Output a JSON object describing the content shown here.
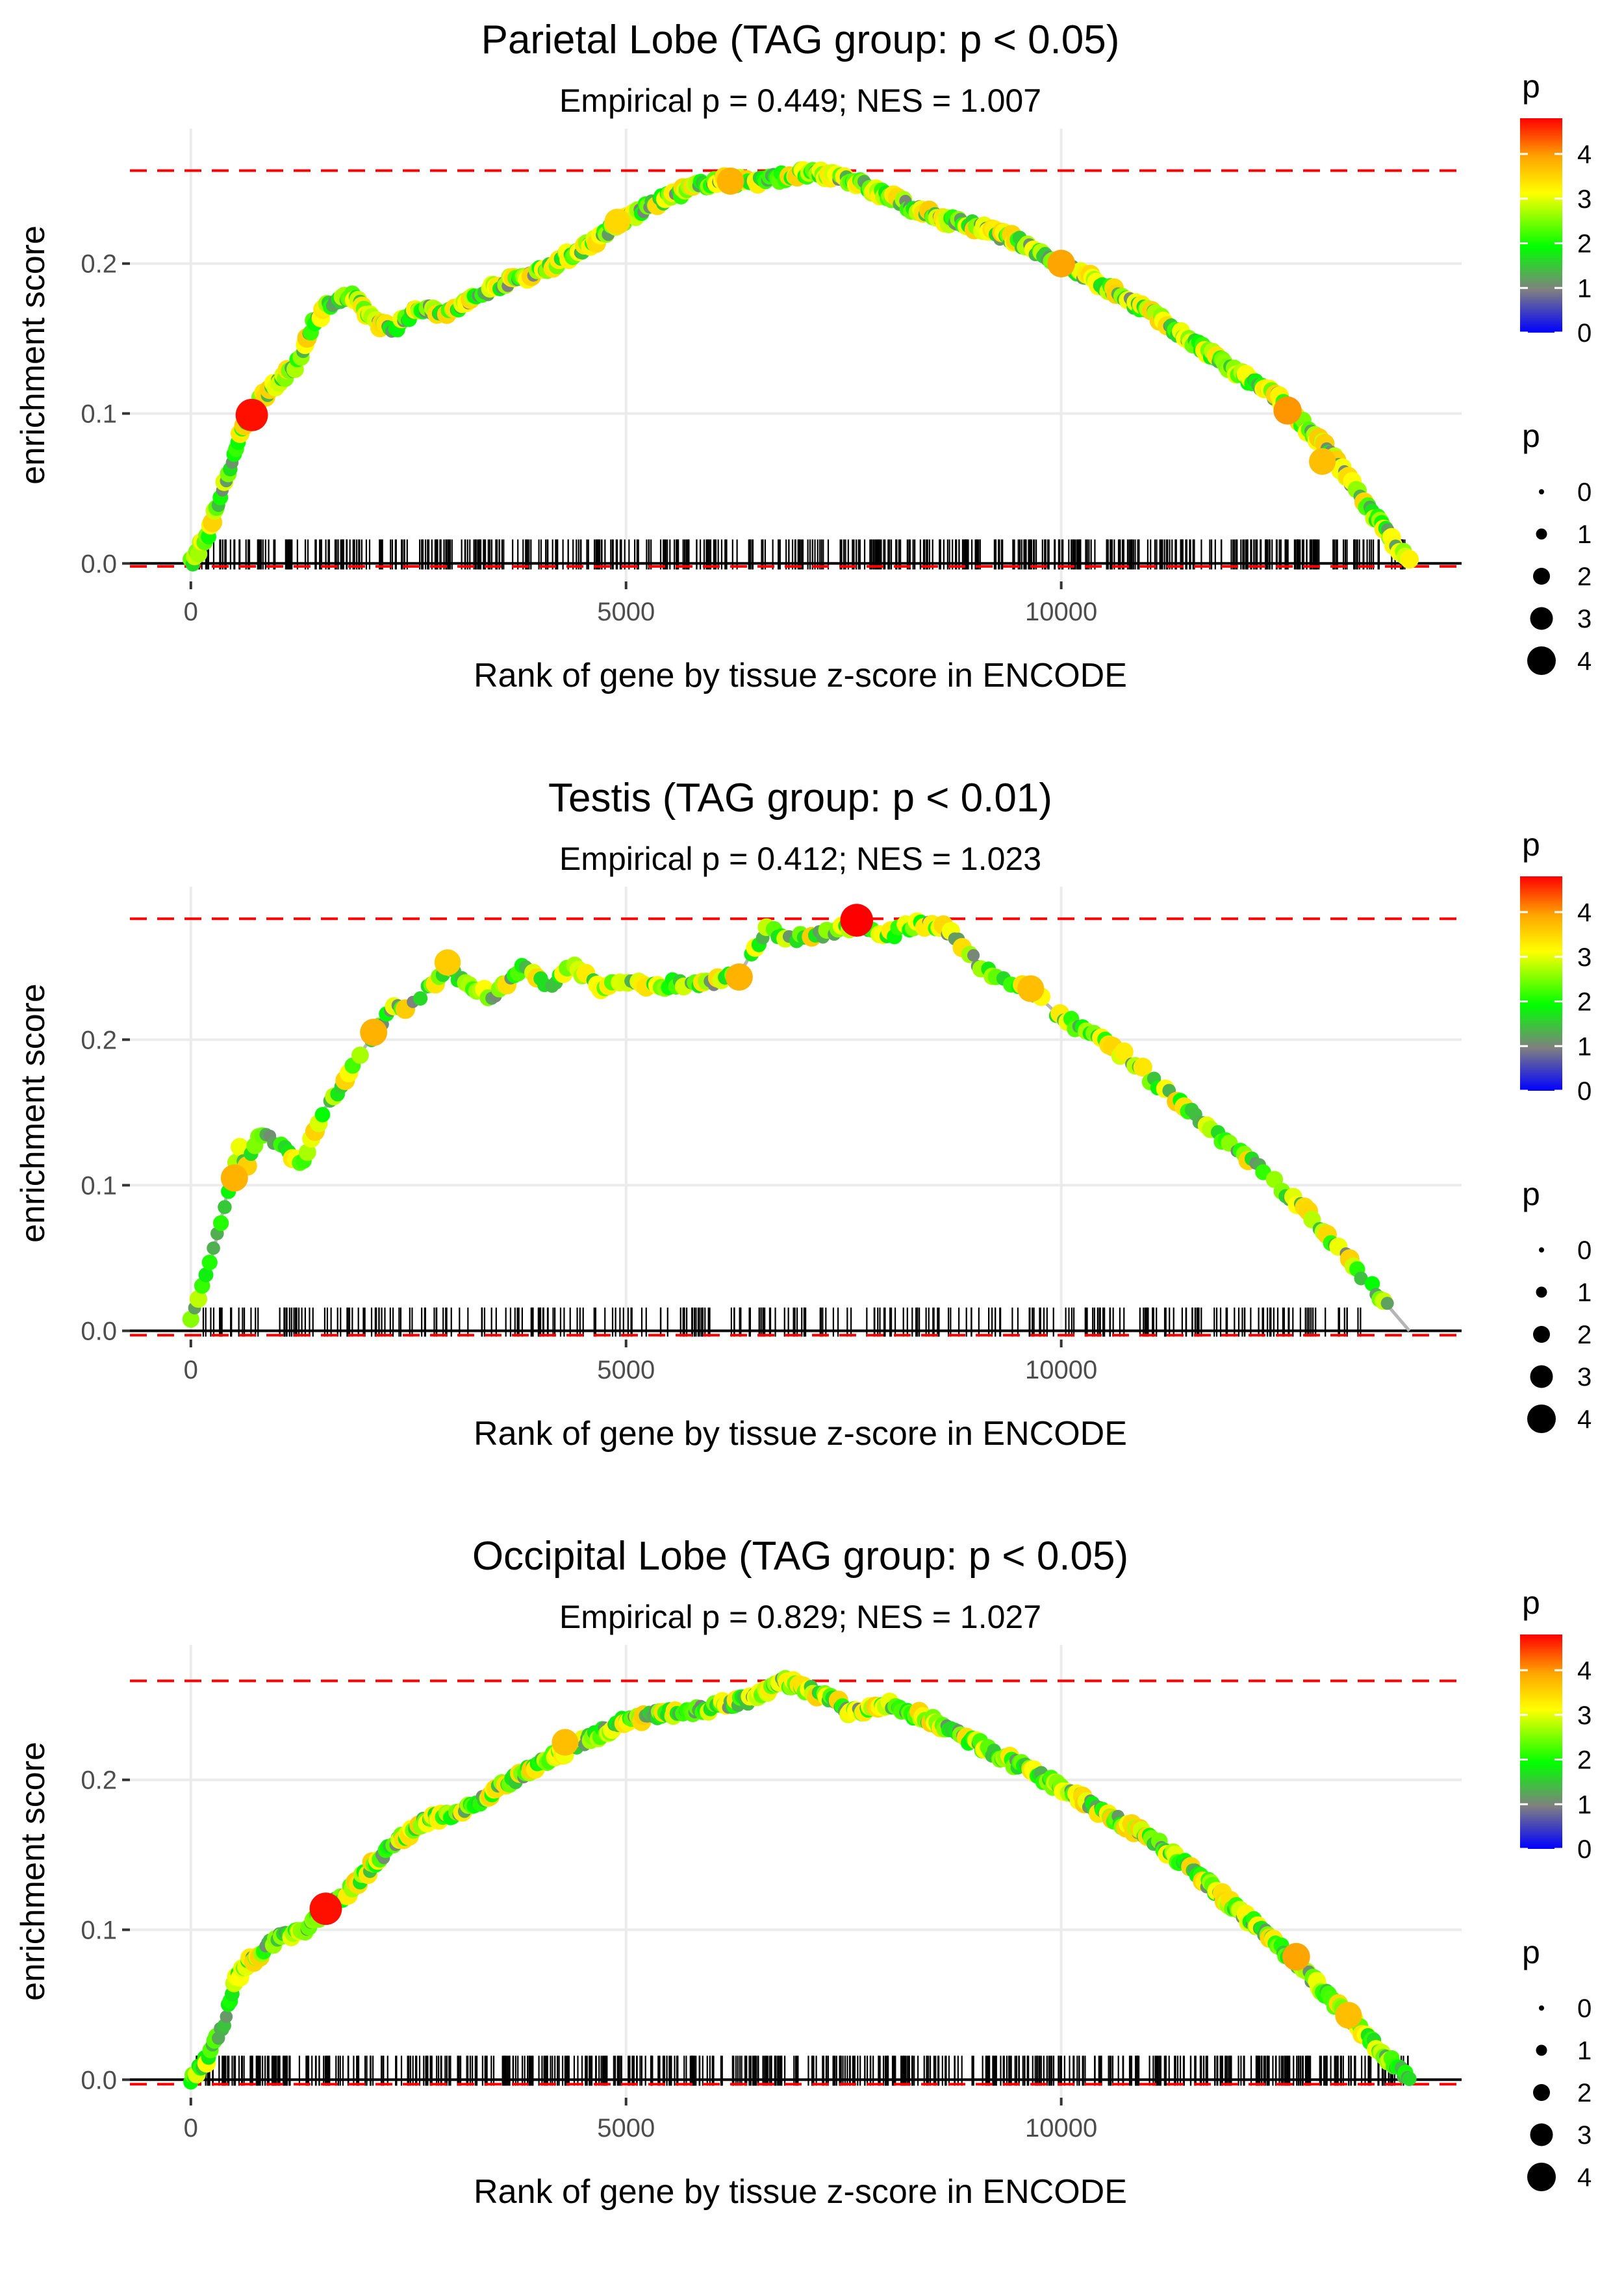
{
  "chart_data": [
    {
      "type": "line",
      "title": "Parietal Lobe (TAG group: p < 0.05)",
      "subtitle": "Empirical p = 0.449; NES = 1.007",
      "xlabel": "Rank of gene by tissue z-score in ENCODE",
      "ylabel": "enrichment score",
      "xlim": [
        -700,
        14600
      ],
      "ylim": [
        -0.012,
        0.29
      ],
      "x_ticks": [
        0,
        5000,
        10000
      ],
      "x_tick_labels": [
        "0",
        "5000",
        "10000"
      ],
      "y_ticks": [
        0.0,
        0.1,
        0.2
      ],
      "y_tick_labels": [
        "0.0",
        "0.1",
        "0.2"
      ],
      "max_es_line": 0.262,
      "min_es_line": -0.002,
      "grid": true,
      "curve": [
        [
          0,
          0.0
        ],
        [
          200,
          0.02
        ],
        [
          400,
          0.055
        ],
        [
          600,
          0.09
        ],
        [
          800,
          0.11
        ],
        [
          1000,
          0.122
        ],
        [
          1200,
          0.13
        ],
        [
          1400,
          0.16
        ],
        [
          1600,
          0.174
        ],
        [
          1850,
          0.178
        ],
        [
          2050,
          0.165
        ],
        [
          2300,
          0.155
        ],
        [
          2600,
          0.17
        ],
        [
          3000,
          0.168
        ],
        [
          3500,
          0.185
        ],
        [
          4000,
          0.195
        ],
        [
          4500,
          0.21
        ],
        [
          5000,
          0.23
        ],
        [
          5500,
          0.245
        ],
        [
          6000,
          0.255
        ],
        [
          6500,
          0.255
        ],
        [
          7000,
          0.26
        ],
        [
          7500,
          0.258
        ],
        [
          8000,
          0.245
        ],
        [
          8500,
          0.232
        ],
        [
          9000,
          0.225
        ],
        [
          9500,
          0.215
        ],
        [
          10000,
          0.2
        ],
        [
          10500,
          0.185
        ],
        [
          11000,
          0.168
        ],
        [
          11500,
          0.148
        ],
        [
          12000,
          0.128
        ],
        [
          12500,
          0.11
        ],
        [
          13000,
          0.08
        ],
        [
          13500,
          0.04
        ],
        [
          14000,
          0.0
        ]
      ],
      "highlights": [
        {
          "rank": 700,
          "es": 0.099,
          "p": 4.7
        },
        {
          "rank": 4900,
          "es": 0.228,
          "p": 3.3
        },
        {
          "rank": 6200,
          "es": 0.255,
          "p": 3.6
        },
        {
          "rank": 10000,
          "es": 0.2,
          "p": 3.7
        },
        {
          "rank": 12600,
          "es": 0.102,
          "p": 3.8
        },
        {
          "rank": 13000,
          "es": 0.068,
          "p": 3.5
        }
      ],
      "rug": {
        "start": 40,
        "end": 14000,
        "count": 560
      },
      "color_legend": {
        "title": "p",
        "labels": [
          "4",
          "3",
          "2",
          "1",
          "0"
        ],
        "max": 4.8
      },
      "size_legend": {
        "title": "p",
        "labels": [
          "0",
          "1",
          "2",
          "3",
          "4"
        ]
      }
    },
    {
      "type": "line",
      "title": "Testis (TAG group: p < 0.01)",
      "subtitle": "Empirical p = 0.412; NES = 1.023",
      "xlabel": "Rank of gene by tissue z-score in ENCODE",
      "ylabel": "enrichment score",
      "xlim": [
        -700,
        14600
      ],
      "ylim": [
        -0.006,
        0.305
      ],
      "x_ticks": [
        0,
        5000,
        10000
      ],
      "x_tick_labels": [
        "0",
        "5000",
        "10000"
      ],
      "y_ticks": [
        0.0,
        0.1,
        0.2
      ],
      "y_tick_labels": [
        "0.0",
        "0.1",
        "0.2"
      ],
      "max_es_line": 0.283,
      "min_es_line": -0.003,
      "grid": true,
      "curve": [
        [
          0,
          0.01
        ],
        [
          200,
          0.04
        ],
        [
          400,
          0.09
        ],
        [
          550,
          0.125
        ],
        [
          650,
          0.115
        ],
        [
          800,
          0.135
        ],
        [
          1000,
          0.13
        ],
        [
          1250,
          0.115
        ],
        [
          1350,
          0.125
        ],
        [
          1500,
          0.15
        ],
        [
          1700,
          0.165
        ],
        [
          2000,
          0.195
        ],
        [
          2300,
          0.22
        ],
        [
          2600,
          0.225
        ],
        [
          2950,
          0.25
        ],
        [
          3200,
          0.235
        ],
        [
          3500,
          0.23
        ],
        [
          3800,
          0.25
        ],
        [
          4100,
          0.235
        ],
        [
          4400,
          0.25
        ],
        [
          4700,
          0.235
        ],
        [
          5000,
          0.24
        ],
        [
          5500,
          0.238
        ],
        [
          6000,
          0.24
        ],
        [
          6300,
          0.245
        ],
        [
          6600,
          0.275
        ],
        [
          7000,
          0.27
        ],
        [
          7400,
          0.275
        ],
        [
          7650,
          0.28
        ],
        [
          8000,
          0.272
        ],
        [
          8400,
          0.28
        ],
        [
          8700,
          0.275
        ],
        [
          9000,
          0.255
        ],
        [
          9300,
          0.24
        ],
        [
          9700,
          0.232
        ],
        [
          10000,
          0.215
        ],
        [
          10500,
          0.2
        ],
        [
          11000,
          0.175
        ],
        [
          11500,
          0.15
        ],
        [
          12000,
          0.125
        ],
        [
          12500,
          0.1
        ],
        [
          13000,
          0.07
        ],
        [
          13500,
          0.035
        ],
        [
          14000,
          0.0
        ]
      ],
      "highlights": [
        {
          "rank": 500,
          "es": 0.105,
          "p": 3.6
        },
        {
          "rank": 2100,
          "es": 0.205,
          "p": 3.6
        },
        {
          "rank": 2950,
          "es": 0.253,
          "p": 3.4
        },
        {
          "rank": 6300,
          "es": 0.243,
          "p": 3.6
        },
        {
          "rank": 7650,
          "es": 0.282,
          "p": 4.8
        },
        {
          "rank": 9650,
          "es": 0.235,
          "p": 3.5
        }
      ],
      "rug": {
        "start": 60,
        "end": 13600,
        "count": 300
      },
      "color_legend": {
        "title": "p",
        "labels": [
          "4",
          "3",
          "2",
          "1",
          "0"
        ],
        "max": 4.8
      },
      "size_legend": {
        "title": "p",
        "labels": [
          "0",
          "1",
          "2",
          "3",
          "4"
        ]
      }
    },
    {
      "type": "line",
      "title": "Occipital Lobe (TAG group: p < 0.05)",
      "subtitle": "Empirical p = 0.829; NES = 1.027",
      "xlabel": "Rank of gene by tissue z-score in ENCODE",
      "ylabel": "enrichment score",
      "xlim": [
        -700,
        14600
      ],
      "ylim": [
        -0.012,
        0.29
      ],
      "x_ticks": [
        0,
        5000,
        10000
      ],
      "x_tick_labels": [
        "0",
        "5000",
        "10000"
      ],
      "y_ticks": [
        0.0,
        0.1,
        0.2
      ],
      "y_tick_labels": [
        "0.0",
        "0.1",
        "0.2"
      ],
      "max_es_line": 0.266,
      "min_es_line": -0.003,
      "grid": true,
      "curve": [
        [
          0,
          0.0
        ],
        [
          200,
          0.015
        ],
        [
          400,
          0.04
        ],
        [
          500,
          0.065
        ],
        [
          700,
          0.08
        ],
        [
          1000,
          0.095
        ],
        [
          1300,
          0.1
        ],
        [
          1550,
          0.113
        ],
        [
          1800,
          0.125
        ],
        [
          2200,
          0.15
        ],
        [
          2600,
          0.17
        ],
        [
          3000,
          0.178
        ],
        [
          3300,
          0.185
        ],
        [
          3700,
          0.2
        ],
        [
          4000,
          0.21
        ],
        [
          4500,
          0.225
        ],
        [
          5000,
          0.24
        ],
        [
          5500,
          0.245
        ],
        [
          6000,
          0.248
        ],
        [
          6500,
          0.255
        ],
        [
          6800,
          0.266
        ],
        [
          7200,
          0.258
        ],
        [
          7600,
          0.245
        ],
        [
          8000,
          0.25
        ],
        [
          8500,
          0.24
        ],
        [
          9000,
          0.225
        ],
        [
          9500,
          0.21
        ],
        [
          10000,
          0.195
        ],
        [
          10500,
          0.178
        ],
        [
          11000,
          0.162
        ],
        [
          11500,
          0.14
        ],
        [
          12000,
          0.115
        ],
        [
          12500,
          0.09
        ],
        [
          13000,
          0.06
        ],
        [
          13500,
          0.03
        ],
        [
          14000,
          0.0
        ]
      ],
      "highlights": [
        {
          "rank": 1550,
          "es": 0.114,
          "p": 4.7
        },
        {
          "rank": 4300,
          "es": 0.225,
          "p": 3.5
        },
        {
          "rank": 12700,
          "es": 0.082,
          "p": 3.7
        },
        {
          "rank": 13300,
          "es": 0.043,
          "p": 3.5
        }
      ],
      "rug": {
        "start": 60,
        "end": 14000,
        "count": 620
      },
      "color_legend": {
        "title": "p",
        "labels": [
          "4",
          "3",
          "2",
          "1",
          "0"
        ],
        "max": 4.8
      },
      "size_legend": {
        "title": "p",
        "labels": [
          "0",
          "1",
          "2",
          "3",
          "4"
        ]
      }
    }
  ]
}
